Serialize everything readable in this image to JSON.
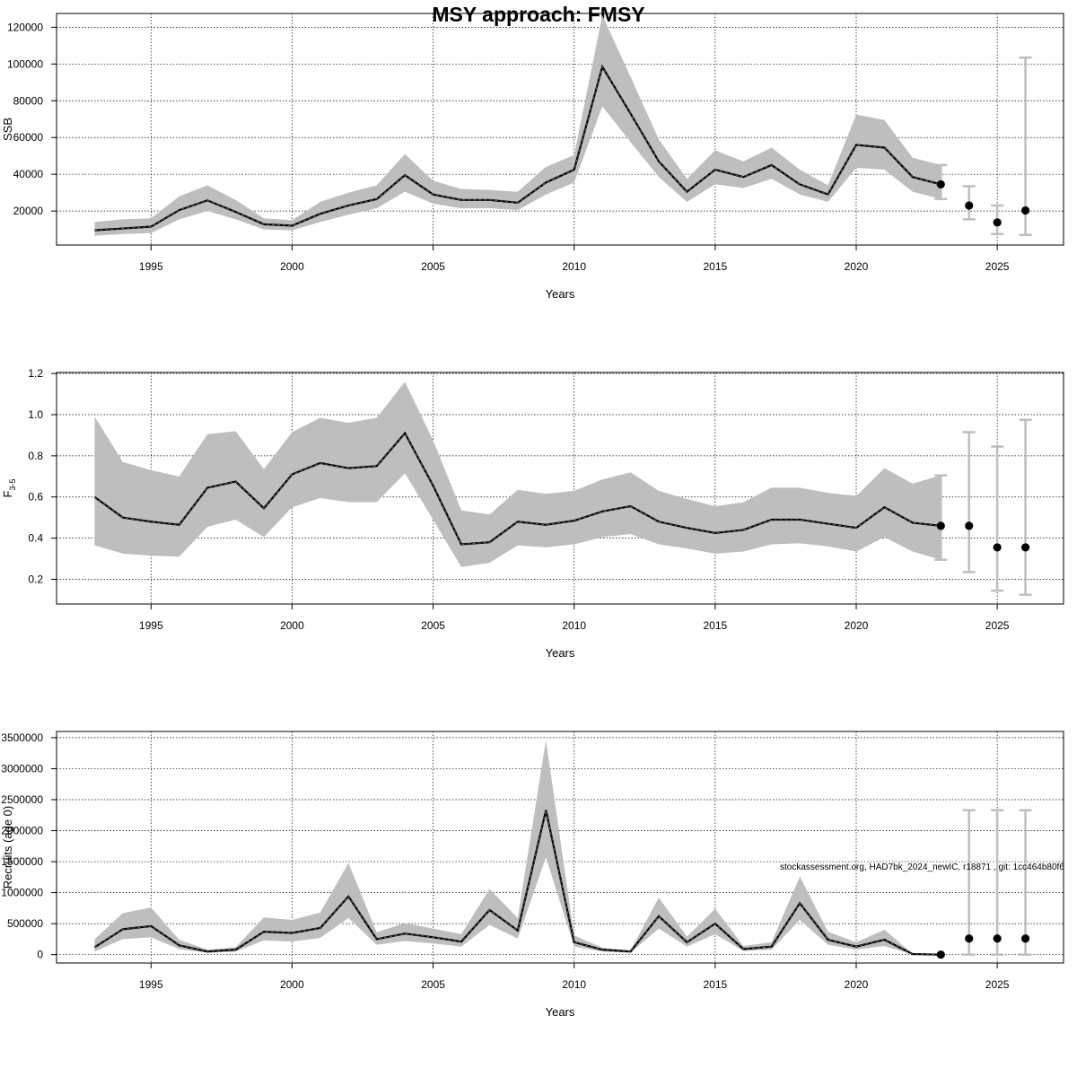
{
  "title": "MSY approach: FMSY",
  "credit": "stockassessment.org, HAD7bk_2024_newIC, r18871 , git: 1cc464b80f6",
  "colors": {
    "band": "#bebebe",
    "errorbar": "#bebebe",
    "line": "#000000",
    "grid": "#000000"
  },
  "chart_data": [
    {
      "type": "line",
      "xlabel": "Years",
      "ylabel": "SSB",
      "ylabel_sub": "",
      "xlim": [
        1991.65,
        2027.35
      ],
      "ylim": [
        1500,
        127500
      ],
      "xticks": [
        1995,
        2000,
        2005,
        2010,
        2015,
        2020,
        2025
      ],
      "yticks": [
        20000,
        40000,
        60000,
        80000,
        100000,
        120000
      ],
      "ytick_labels": [
        "20000",
        "40000",
        "60000",
        "80000",
        "100000",
        "120000"
      ],
      "grid": true,
      "x": [
        1993,
        1994,
        1995,
        1996,
        1997,
        1998,
        1999,
        2000,
        2001,
        2002,
        2003,
        2004,
        2005,
        2006,
        2007,
        2008,
        2009,
        2010,
        2011,
        2012,
        2013,
        2014,
        2015,
        2016,
        2017,
        2018,
        2019,
        2020,
        2021,
        2022,
        2023
      ],
      "estimate": [
        9500,
        10500,
        11500,
        20500,
        25800,
        19500,
        12800,
        12000,
        18500,
        23000,
        26500,
        39500,
        29000,
        26000,
        26000,
        24500,
        35500,
        42500,
        98500,
        73000,
        47000,
        30500,
        42500,
        38500,
        45000,
        34500,
        29000,
        56000,
        54500,
        38500,
        34500
      ],
      "upper": [
        14000,
        15500,
        16000,
        28000,
        34000,
        26000,
        16000,
        15000,
        25000,
        30000,
        34000,
        51000,
        36500,
        32000,
        31500,
        30500,
        44000,
        50500,
        126500,
        93000,
        59000,
        37500,
        53000,
        47000,
        54500,
        42500,
        34000,
        72500,
        69500,
        49000,
        45000
      ],
      "lower": [
        6500,
        7500,
        8000,
        15500,
        20000,
        15500,
        10000,
        9500,
        14000,
        18000,
        21500,
        30500,
        24000,
        21500,
        21500,
        20500,
        29000,
        35500,
        77000,
        57500,
        38500,
        25000,
        34500,
        32500,
        37500,
        29000,
        25000,
        43500,
        42500,
        30500,
        26500
      ],
      "forecast": {
        "x": [
          2023,
          2024,
          2025,
          2026
        ],
        "median": [
          34500,
          23000,
          13800,
          20300
        ],
        "lower": [
          26500,
          15500,
          7500,
          7000
        ],
        "upper": [
          45000,
          33500,
          23000,
          103500
        ]
      }
    },
    {
      "type": "line",
      "xlabel": "Years",
      "ylabel": "F",
      "ylabel_sub": "3-5",
      "xlim": [
        1991.65,
        2027.35
      ],
      "ylim": [
        0.08,
        1.205
      ],
      "xticks": [
        1995,
        2000,
        2005,
        2010,
        2015,
        2020,
        2025
      ],
      "yticks": [
        0.2,
        0.4,
        0.6,
        0.8,
        1.0,
        1.2
      ],
      "ytick_labels": [
        "0.2",
        "0.4",
        "0.6",
        "0.8",
        "1.0",
        "1.2"
      ],
      "grid": true,
      "x": [
        1993,
        1994,
        1995,
        1996,
        1997,
        1998,
        1999,
        2000,
        2001,
        2002,
        2003,
        2004,
        2005,
        2006,
        2007,
        2008,
        2009,
        2010,
        2011,
        2012,
        2013,
        2014,
        2015,
        2016,
        2017,
        2018,
        2019,
        2020,
        2021,
        2022,
        2023
      ],
      "estimate": [
        0.6,
        0.5,
        0.48,
        0.465,
        0.645,
        0.675,
        0.545,
        0.71,
        0.765,
        0.74,
        0.75,
        0.91,
        0.655,
        0.37,
        0.38,
        0.48,
        0.465,
        0.485,
        0.53,
        0.555,
        0.48,
        0.45,
        0.425,
        0.44,
        0.49,
        0.49,
        0.47,
        0.45,
        0.55,
        0.475,
        0.46
      ],
      "upper": [
        0.99,
        0.77,
        0.73,
        0.7,
        0.905,
        0.92,
        0.735,
        0.915,
        0.985,
        0.96,
        0.985,
        1.16,
        0.875,
        0.535,
        0.515,
        0.635,
        0.615,
        0.63,
        0.685,
        0.72,
        0.63,
        0.59,
        0.555,
        0.575,
        0.645,
        0.645,
        0.62,
        0.605,
        0.74,
        0.665,
        0.705
      ],
      "lower": [
        0.365,
        0.325,
        0.315,
        0.31,
        0.455,
        0.49,
        0.405,
        0.55,
        0.595,
        0.575,
        0.575,
        0.715,
        0.49,
        0.26,
        0.28,
        0.365,
        0.355,
        0.37,
        0.405,
        0.42,
        0.37,
        0.35,
        0.325,
        0.335,
        0.37,
        0.375,
        0.36,
        0.335,
        0.405,
        0.335,
        0.295
      ],
      "forecast": {
        "x": [
          2023,
          2024,
          2025,
          2026
        ],
        "median": [
          0.46,
          0.46,
          0.355,
          0.355
        ],
        "lower": [
          0.295,
          0.235,
          0.145,
          0.125
        ],
        "upper": [
          0.705,
          0.915,
          0.845,
          0.975
        ]
      }
    },
    {
      "type": "line",
      "xlabel": "Years",
      "ylabel": "Recruits (age 0)",
      "ylabel_sub": "",
      "xlim": [
        1991.65,
        2027.35
      ],
      "ylim": [
        -135000,
        3600000
      ],
      "xticks": [
        1995,
        2000,
        2005,
        2010,
        2015,
        2020,
        2025
      ],
      "yticks": [
        0,
        500000,
        1000000,
        1500000,
        2000000,
        2500000,
        3000000,
        3500000
      ],
      "ytick_labels": [
        "0",
        "500000",
        "1000000",
        "1500000",
        "2000000",
        "2500000",
        "3000000",
        "3500000"
      ],
      "grid": true,
      "x": [
        1993,
        1994,
        1995,
        1996,
        1997,
        1998,
        1999,
        2000,
        2001,
        2002,
        2003,
        2004,
        2005,
        2006,
        2007,
        2008,
        2009,
        2010,
        2011,
        2012,
        2013,
        2014,
        2015,
        2016,
        2017,
        2018,
        2019,
        2020,
        2021,
        2022,
        2023
      ],
      "estimate": [
        120000,
        410000,
        460000,
        150000,
        50000,
        80000,
        370000,
        350000,
        430000,
        940000,
        250000,
        340000,
        280000,
        210000,
        720000,
        390000,
        2330000,
        200000,
        80000,
        50000,
        620000,
        200000,
        500000,
        90000,
        130000,
        830000,
        240000,
        130000,
        240000,
        10000,
        0
      ],
      "upper": [
        250000,
        670000,
        760000,
        240000,
        80000,
        120000,
        600000,
        560000,
        680000,
        1480000,
        360000,
        510000,
        420000,
        330000,
        1060000,
        590000,
        3460000,
        310000,
        110000,
        70000,
        920000,
        290000,
        740000,
        140000,
        200000,
        1260000,
        370000,
        200000,
        400000,
        15000,
        0
      ],
      "lower": [
        50000,
        250000,
        280000,
        90000,
        30000,
        50000,
        230000,
        210000,
        270000,
        590000,
        160000,
        220000,
        180000,
        130000,
        480000,
        260000,
        1570000,
        130000,
        50000,
        30000,
        420000,
        130000,
        330000,
        60000,
        80000,
        560000,
        160000,
        80000,
        140000,
        5000,
        0
      ],
      "forecast": {
        "x": [
          2023,
          2024,
          2025,
          2026
        ],
        "median": [
          0,
          260000,
          260000,
          260000
        ],
        "lower": [
          0,
          0,
          0,
          0
        ],
        "upper": [
          0,
          2330000,
          2330000,
          2330000
        ]
      }
    }
  ]
}
